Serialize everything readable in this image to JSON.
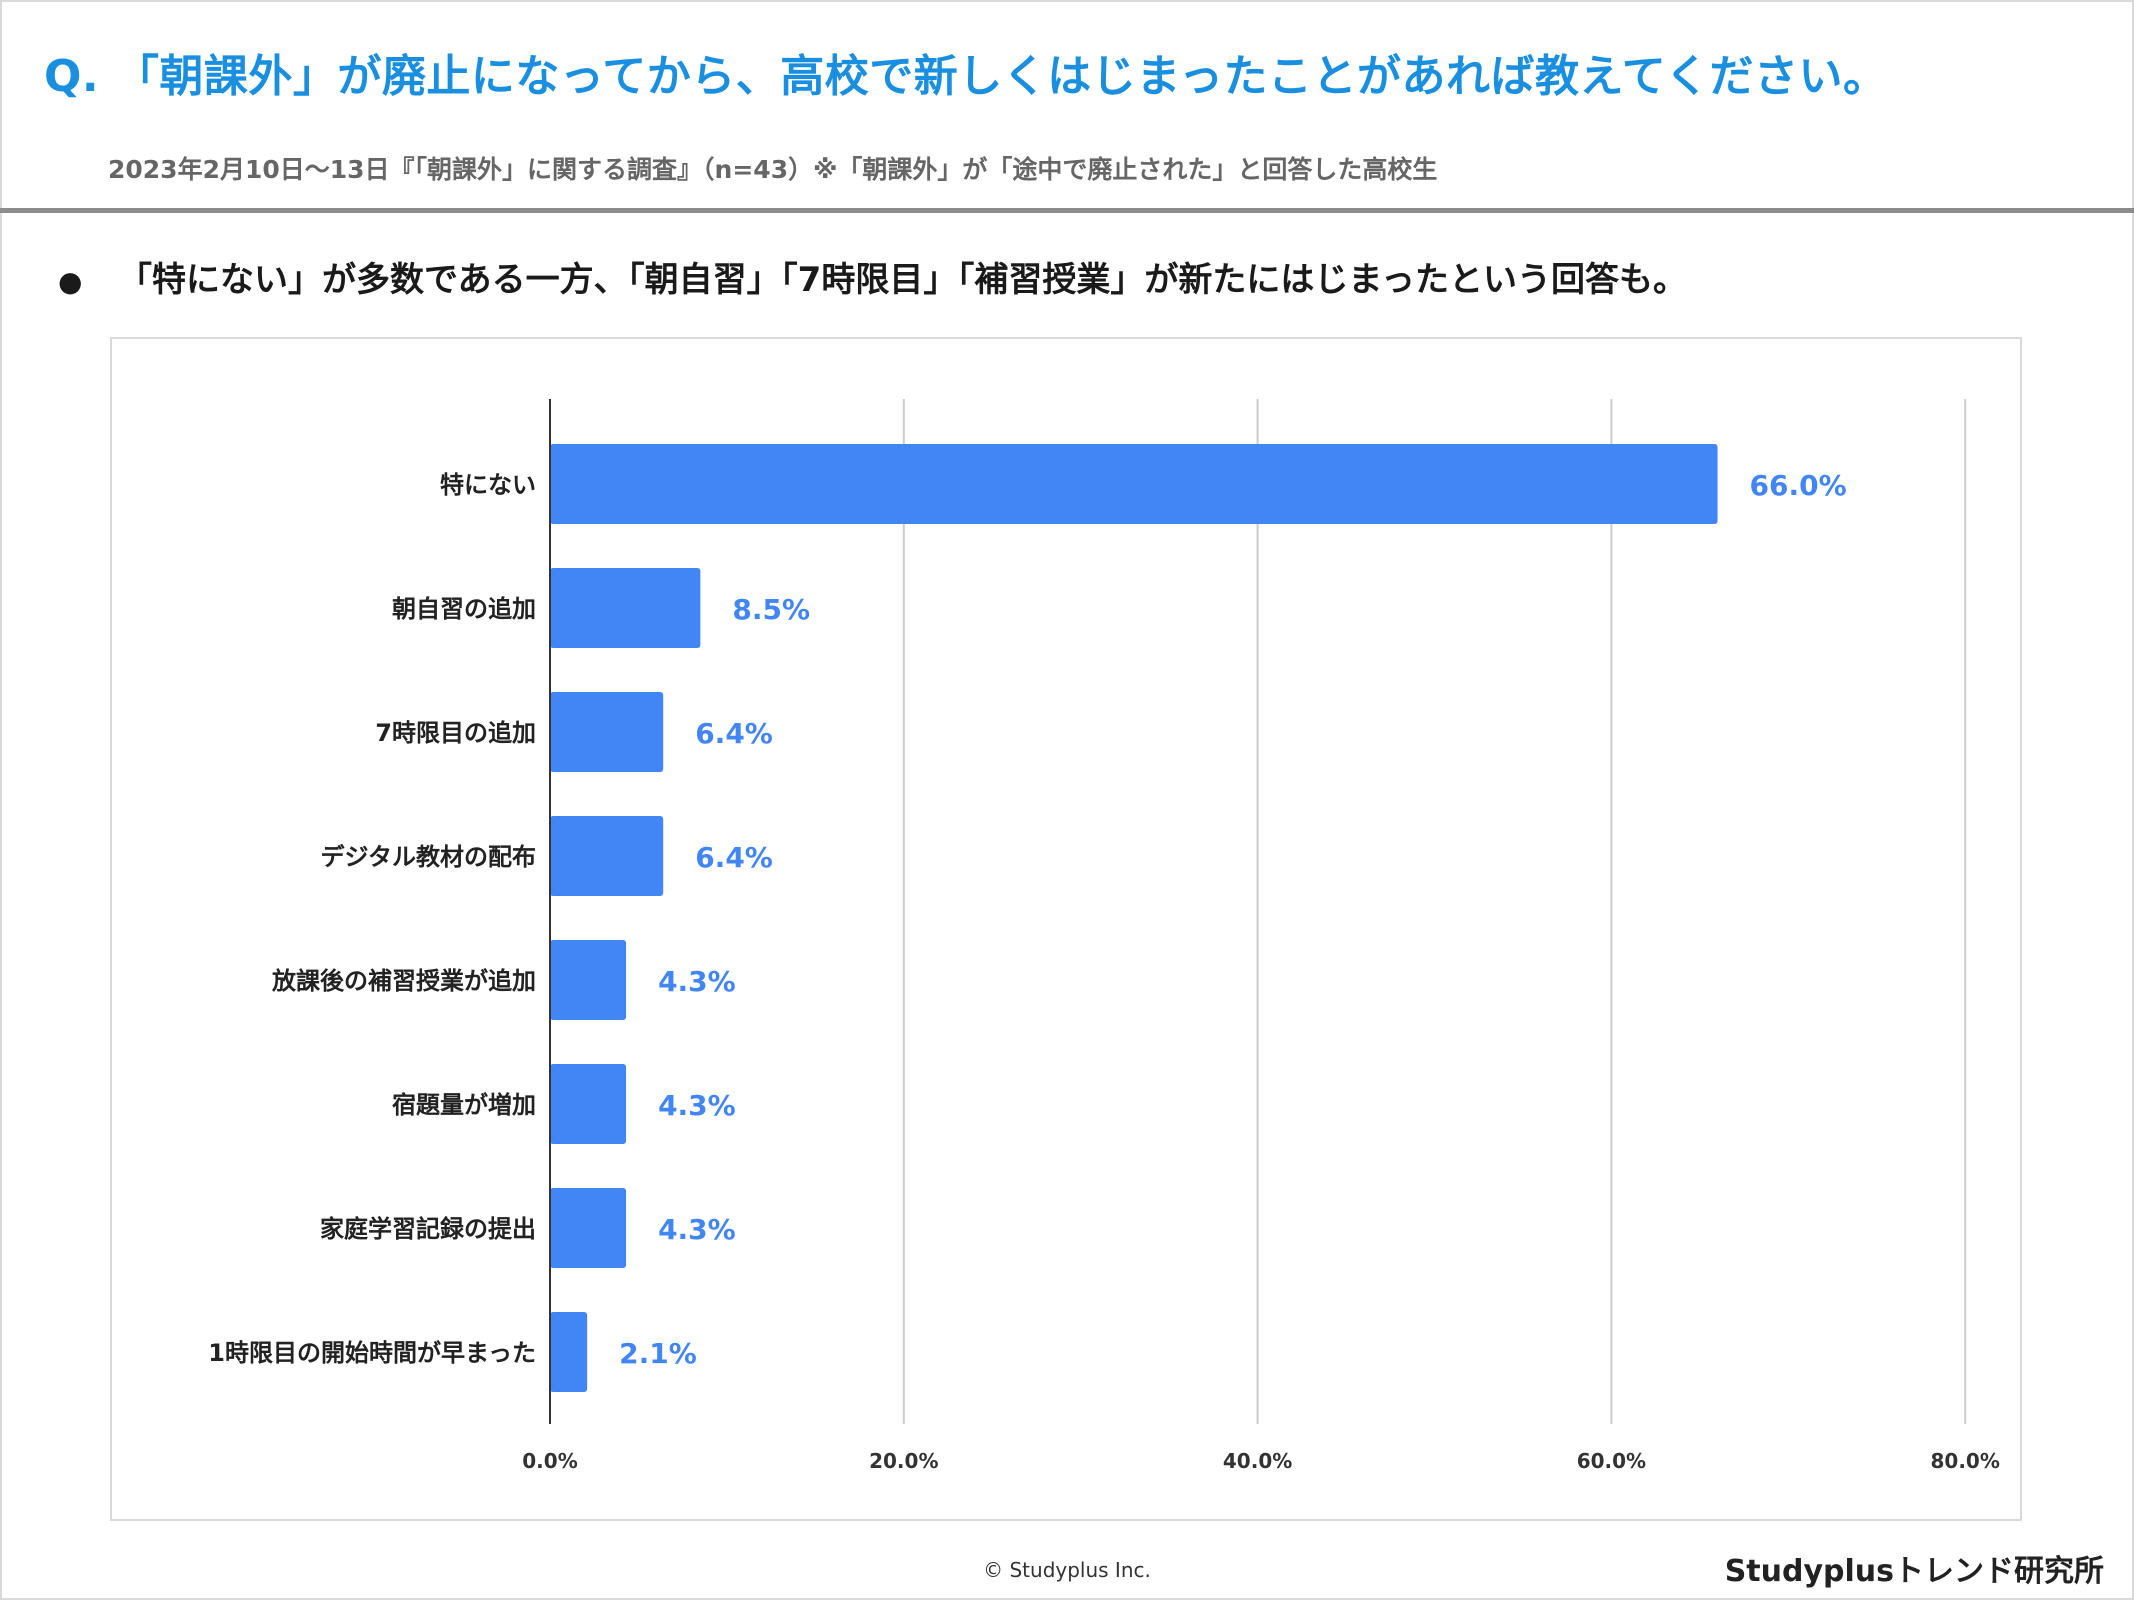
{
  "header": {
    "title": "Q. 「朝課外」が廃止になってから、高校で新しくはじまったことがあれば教えてください。",
    "subtitle": "2023年2月10日～13日『「朝課外」に関する調査』（n=43）※「朝課外」が「途中で廃止された」と回答した高校生"
  },
  "summary": {
    "bullet_icon": "bullet-dot-icon",
    "text": "「特にない」が多数である一方、「朝自習」「7時限目」「補習授業」が新たにはじまったという回答も。"
  },
  "colors": {
    "bar": "#4285f4",
    "title": "#1a8fe0"
  },
  "chart_data": {
    "type": "bar",
    "orientation": "horizontal",
    "categories": [
      "特にない",
      "朝自習の追加",
      "7時限目の追加",
      "デジタル教材の配布",
      "放課後の補習授業が追加",
      "宿題量が増加",
      "家庭学習記録の提出",
      "1時限目の開始時間が早まった"
    ],
    "values": [
      66.0,
      8.5,
      6.4,
      6.4,
      4.3,
      4.3,
      4.3,
      2.1
    ],
    "value_labels": [
      "66.0%",
      "8.5%",
      "6.4%",
      "6.4%",
      "4.3%",
      "4.3%",
      "4.3%",
      "2.1%"
    ],
    "xlim": [
      0,
      80
    ],
    "xticks": [
      0,
      20,
      40,
      60,
      80
    ],
    "xtick_labels": [
      "0.0%",
      "20.0%",
      "40.0%",
      "60.0%",
      "80.0%"
    ],
    "grid": true
  },
  "footer": {
    "copyright": "© Studyplus Inc.",
    "brand": "Studyplusトレンド研究所"
  }
}
